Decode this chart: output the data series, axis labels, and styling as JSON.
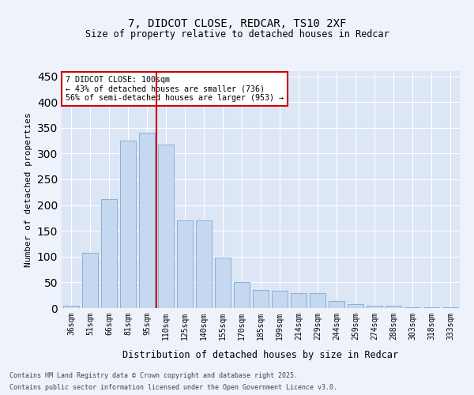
{
  "title1": "7, DIDCOT CLOSE, REDCAR, TS10 2XF",
  "title2": "Size of property relative to detached houses in Redcar",
  "xlabel": "Distribution of detached houses by size in Redcar",
  "ylabel": "Number of detached properties",
  "categories": [
    "36sqm",
    "51sqm",
    "66sqm",
    "81sqm",
    "95sqm",
    "110sqm",
    "125sqm",
    "140sqm",
    "155sqm",
    "170sqm",
    "185sqm",
    "199sqm",
    "214sqm",
    "229sqm",
    "244sqm",
    "259sqm",
    "274sqm",
    "288sqm",
    "303sqm",
    "318sqm",
    "333sqm"
  ],
  "values": [
    5,
    108,
    212,
    325,
    340,
    318,
    170,
    170,
    98,
    50,
    35,
    34,
    29,
    29,
    14,
    8,
    5,
    5,
    2,
    1,
    1
  ],
  "bar_color": "#c5d8f0",
  "bar_edge_color": "#7aaad0",
  "vline_x": 4.5,
  "vline_color": "#cc0000",
  "annotation_text": "7 DIDCOT CLOSE: 100sqm\n← 43% of detached houses are smaller (736)\n56% of semi-detached houses are larger (953) →",
  "ylim": [
    0,
    460
  ],
  "yticks": [
    0,
    50,
    100,
    150,
    200,
    250,
    300,
    350,
    400,
    450
  ],
  "fig_bg_color": "#eef2fb",
  "ax_bg_color": "#dce6f5",
  "grid_color": "#ffffff",
  "footer1": "Contains HM Land Registry data © Crown copyright and database right 2025.",
  "footer2": "Contains public sector information licensed under the Open Government Licence v3.0."
}
